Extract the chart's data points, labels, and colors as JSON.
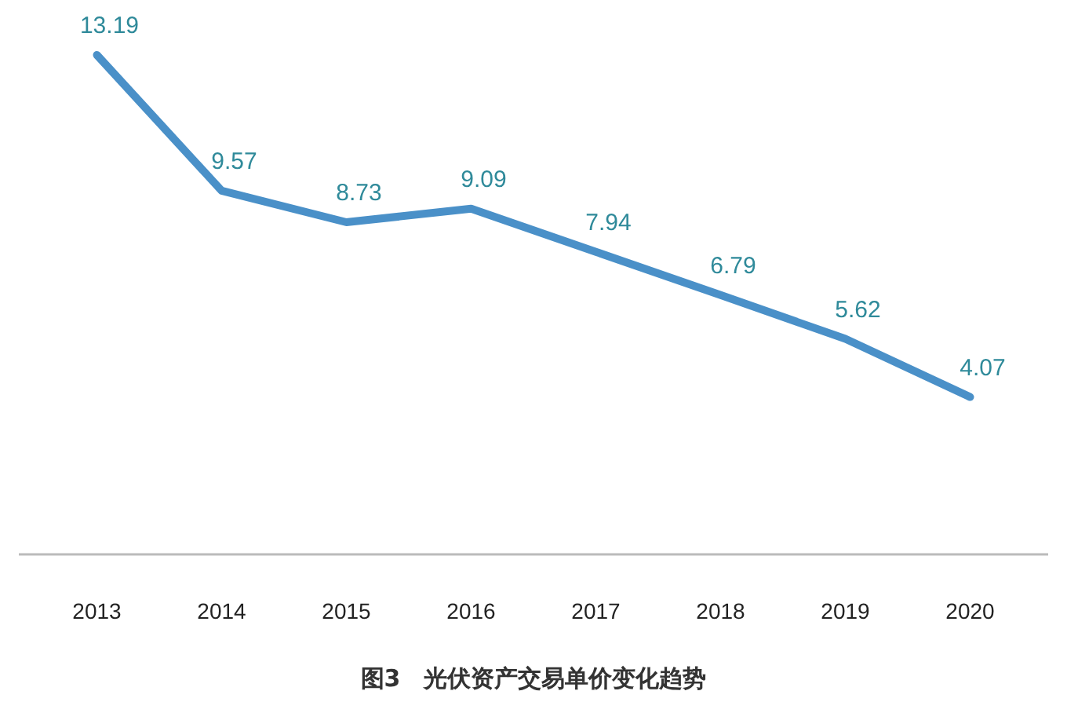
{
  "chart_data": {
    "type": "line",
    "title": "图3　光伏资产交易单价变化趋势",
    "categories": [
      "2013",
      "2014",
      "2015",
      "2016",
      "2017",
      "2018",
      "2019",
      "2020"
    ],
    "series": [
      {
        "color": "#4a90c8",
        "values": [
          13.19,
          9.57,
          8.73,
          9.09,
          7.94,
          6.79,
          5.62,
          4.07
        ]
      }
    ],
    "data_labels": true,
    "marker": "none",
    "line_style": "solid"
  }
}
